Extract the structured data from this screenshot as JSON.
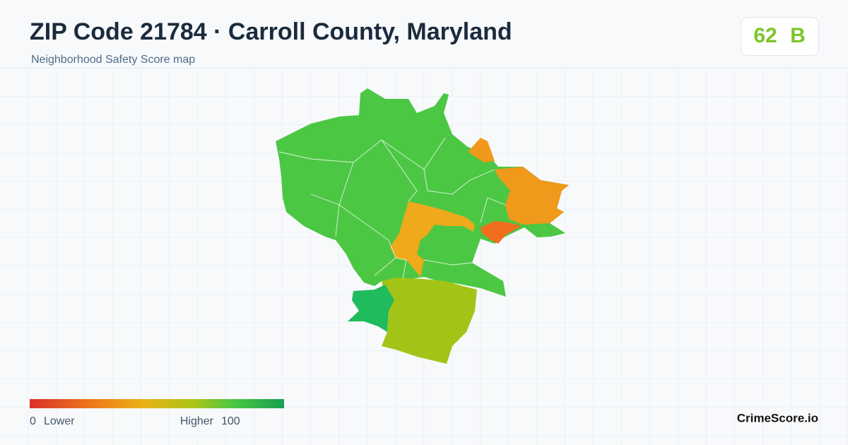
{
  "header": {
    "title": "ZIP Code 21784 · Carroll County, Maryland",
    "subtitle": "Neighborhood Safety Score map"
  },
  "score": {
    "value": 62,
    "grade": "B"
  },
  "legend": {
    "min": 0,
    "min_label": "Lower",
    "max_label": "Higher",
    "max": 100
  },
  "brand": "CrimeScore.io"
}
